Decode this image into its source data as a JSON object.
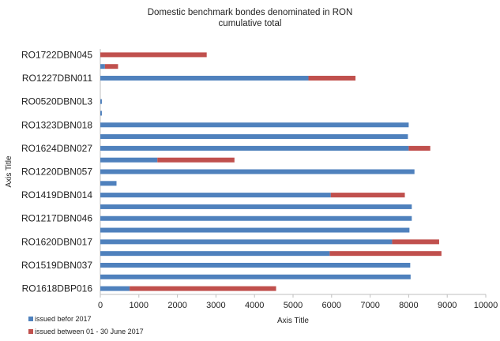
{
  "chart_data": {
    "type": "bar",
    "orientation": "horizontal",
    "stacked": true,
    "title": "Domestic benchmark bondes denominated in RON",
    "subtitle": "cumulative total",
    "xlabel": "Axis Title",
    "ylabel": "Axis Title",
    "xlim": [
      0,
      10000
    ],
    "x_ticks": [
      0,
      1000,
      2000,
      3000,
      4000,
      5000,
      6000,
      7000,
      8000,
      9000,
      10000
    ],
    "grid": false,
    "legend_position": "bottom-left",
    "categories_top_to_bottom": [
      "RO1722DBN045",
      "",
      "RO1227DBN011",
      "",
      "RO0520DBN0L3",
      "",
      "RO1323DBN018",
      "",
      "RO1624DBN027",
      "",
      "RO1220DBN057",
      "",
      "RO1419DBN014",
      "",
      "RO1217DBN046",
      "",
      "RO1620DBN017",
      "",
      "RO1519DBN037",
      "",
      "RO1618DBP016"
    ],
    "series": [
      {
        "name": "issued befor 2017",
        "color": "#4f81bd",
        "values": [
          0,
          120,
          5400,
          0,
          40,
          40,
          8000,
          7980,
          8000,
          1480,
          8150,
          420,
          5980,
          8080,
          8080,
          8020,
          7570,
          5950,
          8040,
          8050,
          760
        ]
      },
      {
        "name": "issued between 01 - 30 June 2017",
        "color": "#c0504d",
        "values": [
          2760,
          340,
          1220,
          0,
          0,
          0,
          0,
          0,
          560,
          2000,
          0,
          0,
          1920,
          0,
          0,
          0,
          1220,
          2900,
          0,
          0,
          3800
        ]
      }
    ]
  }
}
